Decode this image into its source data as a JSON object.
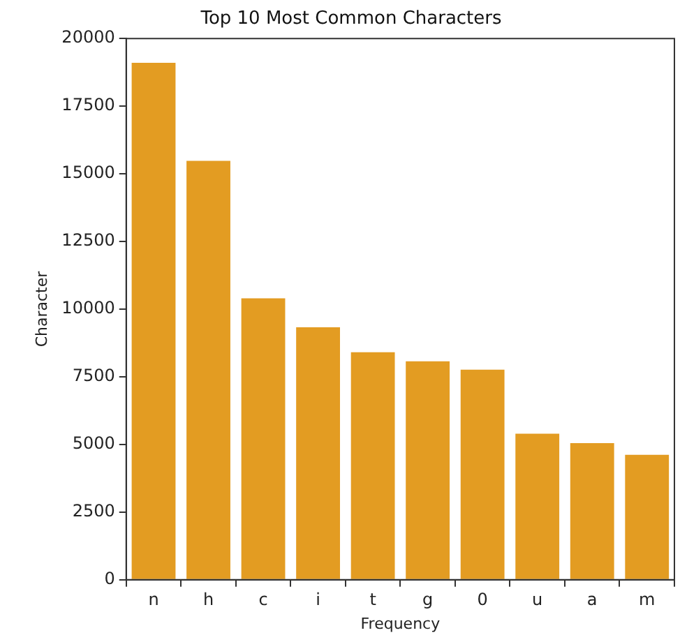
{
  "chart_data": {
    "type": "bar",
    "title": "Top 10 Most Common Characters",
    "xlabel": "Frequency",
    "ylabel": "Character",
    "categories": [
      "n",
      "h",
      "c",
      "i",
      "t",
      "g",
      "0",
      "u",
      "a",
      "m"
    ],
    "values": [
      19100,
      15480,
      10400,
      9330,
      8410,
      8070,
      7760,
      5400,
      5050,
      4620
    ],
    "color": "#e39c22",
    "ylim": [
      0,
      20000
    ],
    "yticks": [
      0,
      2500,
      5000,
      7500,
      10000,
      12500,
      15000,
      17500,
      20000
    ],
    "grid": false,
    "legend": false
  }
}
